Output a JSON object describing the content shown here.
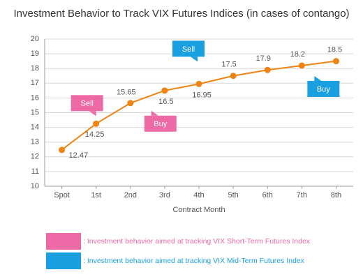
{
  "chart_data": {
    "type": "line",
    "title": "Investment Behavior to Track VIX Futures Indices (in cases of contango)",
    "x_label": "Contract Month",
    "categories": [
      "Spot",
      "1st",
      "2nd",
      "3rd",
      "4th",
      "5th",
      "6th",
      "7th",
      "8th"
    ],
    "values": [
      12.47,
      14.25,
      15.65,
      16.5,
      16.95,
      17.5,
      17.9,
      18.2,
      18.5
    ],
    "color": "#f0820f",
    "ylim": [
      10,
      20
    ],
    "yticks": [
      10,
      11,
      12,
      13,
      14,
      15,
      16,
      17,
      18,
      19,
      20
    ],
    "grid": true,
    "annotations": [
      {
        "text": "Sell",
        "category": "1st",
        "color": "#ee6aa7"
      },
      {
        "text": "Buy",
        "category": "2nd",
        "color": "#ee6aa7"
      },
      {
        "text": "Sell",
        "category": "4th",
        "color": "#1aa0e0"
      },
      {
        "text": "Buy",
        "category": "7th",
        "color": "#1aa0e0"
      }
    ],
    "legend": [
      {
        "label": ": Investment behavior aimed at tracking VIX Short-Term Futures Index",
        "color": "#ee6aa7"
      },
      {
        "label": ": Investment behavior aimed at tracking VIX Mid-Term Futures Index",
        "color": "#1aa0e0"
      }
    ]
  }
}
